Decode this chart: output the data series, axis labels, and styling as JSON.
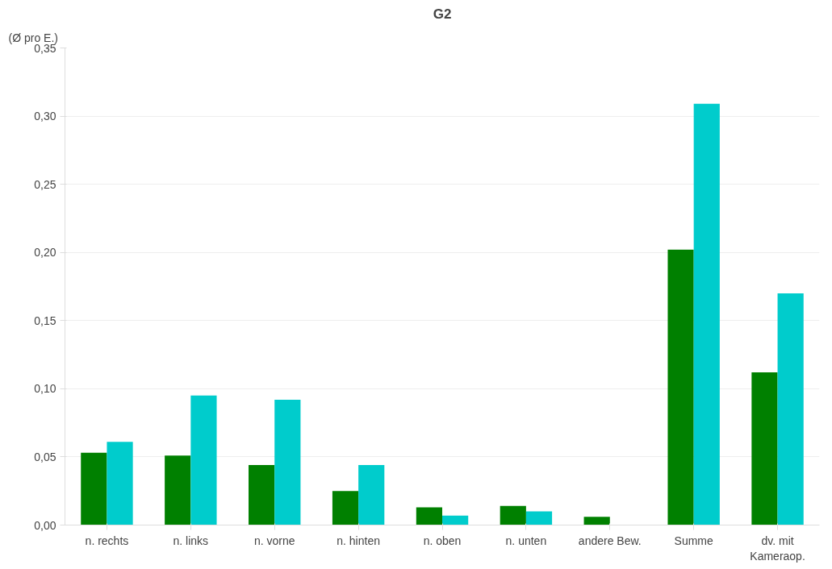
{
  "chart_data": {
    "type": "bar",
    "title": "G2",
    "ylabel": "(Ø pro E.)",
    "categories": [
      "n. rechts",
      "n. links",
      "n. vorne",
      "n. hinten",
      "n. oben",
      "n. unten",
      "andere Bew.",
      "Summe",
      "dv. mit\nKameraop."
    ],
    "series": [
      {
        "color": "#008000",
        "values": [
          0.053,
          0.051,
          0.044,
          0.025,
          0.013,
          0.014,
          0.006,
          0.202,
          0.112
        ]
      },
      {
        "color": "#00cccc",
        "values": [
          0.061,
          0.095,
          0.092,
          0.044,
          0.007,
          0.01,
          null,
          0.309,
          0.17
        ]
      }
    ],
    "ylim": [
      0,
      0.35
    ],
    "yticks": [
      {
        "value": 0,
        "label": "0,00"
      },
      {
        "value": 0.05,
        "label": "0,05"
      },
      {
        "value": 0.1,
        "label": "0,10"
      },
      {
        "value": 0.15,
        "label": "0,15"
      },
      {
        "value": 0.2,
        "label": "0,20"
      },
      {
        "value": 0.25,
        "label": "0,25"
      },
      {
        "value": 0.3,
        "label": "0,30"
      },
      {
        "value": 0.35,
        "label": "0,35"
      }
    ],
    "grid": "y"
  }
}
